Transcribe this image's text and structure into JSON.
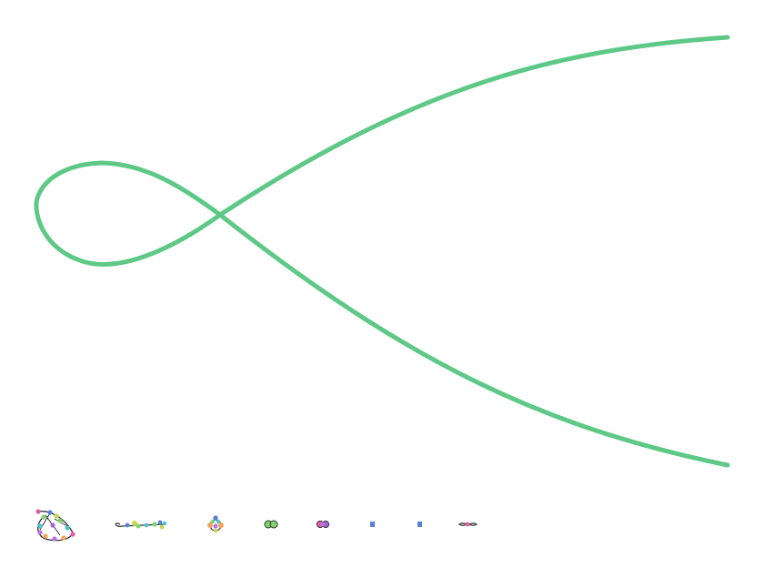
{
  "colors": {
    "background": "#ffffff",
    "main_curve": "#5ec986",
    "node_palette": [
      "#e15fa3",
      "#5b7fd6",
      "#7fd36a",
      "#f0a35b",
      "#b774e0",
      "#4fc4c9",
      "#c9d655",
      "#9a66d9"
    ],
    "edge": "#333333"
  },
  "main_curve": {
    "name": "loop-curve"
  },
  "thumbnails": [
    {
      "name": "thumbnail-1",
      "kind": "cluster-loop"
    },
    {
      "name": "thumbnail-2",
      "kind": "chain"
    },
    {
      "name": "thumbnail-3",
      "kind": "flower"
    },
    {
      "name": "thumbnail-4",
      "kind": "pair-green"
    },
    {
      "name": "thumbnail-5",
      "kind": "pair-purple"
    },
    {
      "name": "thumbnail-6",
      "kind": "dot"
    },
    {
      "name": "thumbnail-7",
      "kind": "dot"
    },
    {
      "name": "thumbnail-8",
      "kind": "tiny-loop"
    }
  ]
}
